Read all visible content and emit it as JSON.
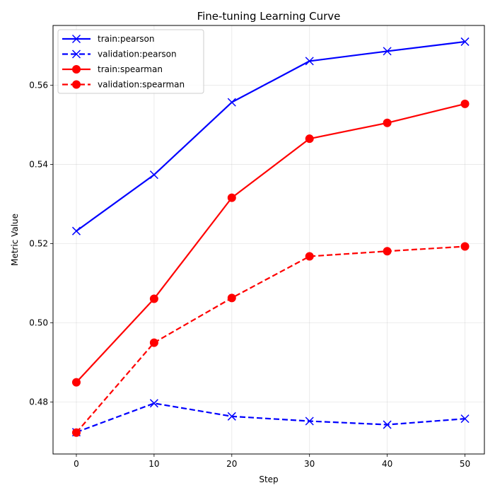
{
  "chart_data": {
    "type": "line",
    "title": "Fine-tuning Learning Curve",
    "xlabel": "Step",
    "ylabel": "Metric Value",
    "x": [
      0,
      10,
      20,
      30,
      40,
      50
    ],
    "xlim": [
      -3,
      52.5
    ],
    "ylim": [
      0.4669,
      0.5751
    ],
    "xticks": [
      0,
      10,
      20,
      30,
      40,
      50
    ],
    "yticks": [
      0.48,
      0.5,
      0.52,
      0.54,
      0.56
    ],
    "ytick_labels": [
      "0.48",
      "0.50",
      "0.52",
      "0.54",
      "0.56"
    ],
    "xtick_labels": [
      "0",
      "10",
      "20",
      "30",
      "40",
      "50"
    ],
    "grid": true,
    "legend_position": "top-left",
    "series": [
      {
        "name": "train:pearson",
        "color": "#0000ff",
        "linestyle": "solid",
        "marker": "x",
        "values": [
          0.5232,
          0.5374,
          0.5557,
          0.5661,
          0.5686,
          0.571
        ]
      },
      {
        "name": "validation:pearson",
        "color": "#0000ff",
        "linestyle": "dashed",
        "marker": "x",
        "values": [
          0.4724,
          0.4797,
          0.4764,
          0.4752,
          0.4743,
          0.4758
        ]
      },
      {
        "name": "train:spearman",
        "color": "#ff0000",
        "linestyle": "solid",
        "marker": "o",
        "values": [
          0.485,
          0.5061,
          0.5316,
          0.5465,
          0.5505,
          0.5553
        ]
      },
      {
        "name": "validation:spearman",
        "color": "#ff0000",
        "linestyle": "dashed",
        "marker": "o",
        "values": [
          0.4723,
          0.495,
          0.5063,
          0.5168,
          0.5181,
          0.5193
        ]
      }
    ]
  }
}
